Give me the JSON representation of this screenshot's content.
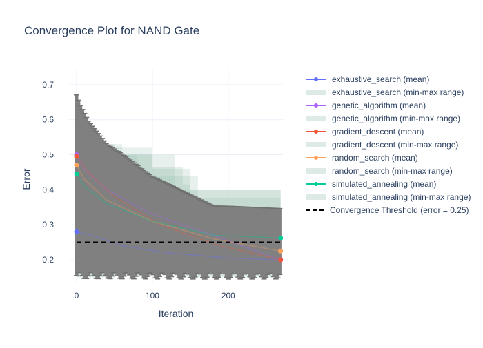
{
  "chart_data": {
    "type": "line",
    "title": "Convergence Plot for NAND Gate",
    "xlabel": "Iteration",
    "ylabel": "Error",
    "xlim": [
      -10,
      272
    ],
    "ylim": [
      0.135,
      0.745
    ],
    "xticks": [
      0,
      100,
      200
    ],
    "yticks": [
      0.2,
      0.3,
      0.4,
      0.5,
      0.6,
      0.7
    ],
    "grid": true,
    "legend_position": "right",
    "threshold": {
      "name": "Convergence Threshold (error = 0.25)",
      "y": 0.25,
      "color": "#000000"
    },
    "series": [
      {
        "name": "exhaustive_search (mean)",
        "range_name": "exhaustive_search (min-max range)",
        "color": "#636efa",
        "points": [
          [
            0,
            0.28
          ],
          [
            20,
            0.27
          ],
          [
            60,
            0.24
          ],
          [
            120,
            0.22
          ],
          [
            200,
            0.205
          ],
          [
            269,
            0.2
          ]
        ],
        "range": [
          [
            0,
            0.16,
            0.36
          ],
          [
            50,
            0.155,
            0.33
          ],
          [
            150,
            0.155,
            0.315
          ],
          [
            269,
            0.155,
            0.315
          ]
        ]
      },
      {
        "name": "genetic_algorithm (mean)",
        "range_name": "genetic_algorithm (min-max range)",
        "color": "#ab63fa",
        "points": [
          [
            0,
            0.5
          ],
          [
            10,
            0.46
          ],
          [
            40,
            0.4
          ],
          [
            100,
            0.33
          ],
          [
            180,
            0.27
          ],
          [
            269,
            0.2
          ]
        ],
        "range": [
          [
            0,
            0.16,
            0.53
          ],
          [
            60,
            0.16,
            0.5
          ],
          [
            130,
            0.165,
            0.4
          ],
          [
            269,
            0.165,
            0.315
          ]
        ]
      },
      {
        "name": "gradient_descent (mean)",
        "range_name": "gradient_descent (min-max range)",
        "color": "#ef553b",
        "points": [
          [
            0,
            0.495
          ],
          [
            15,
            0.45
          ],
          [
            50,
            0.38
          ],
          [
            110,
            0.3
          ],
          [
            190,
            0.24
          ],
          [
            269,
            0.2
          ]
        ],
        "range": [
          [
            0,
            0.15,
            0.53
          ],
          [
            25,
            0.15,
            0.53
          ],
          [
            50,
            0.16,
            0.52
          ],
          [
            100,
            0.165,
            0.46
          ],
          [
            150,
            0.16,
            0.4
          ],
          [
            269,
            0.16,
            0.315
          ]
        ]
      },
      {
        "name": "random_search (mean)",
        "range_name": "random_search (min-max range)",
        "color": "#ffa15a",
        "points": [
          [
            0,
            0.47
          ],
          [
            10,
            0.43
          ],
          [
            40,
            0.37
          ],
          [
            100,
            0.31
          ],
          [
            180,
            0.26
          ],
          [
            269,
            0.225
          ]
        ],
        "range": [
          [
            0,
            0.16,
            0.5
          ],
          [
            80,
            0.16,
            0.44
          ],
          [
            160,
            0.16,
            0.35
          ],
          [
            269,
            0.16,
            0.315
          ]
        ]
      },
      {
        "name": "simulated_annealing (mean)",
        "range_name": "simulated_annealing (min-max range)",
        "color": "#00cc96",
        "points": [
          [
            0,
            0.445
          ],
          [
            10,
            0.41
          ],
          [
            40,
            0.36
          ],
          [
            100,
            0.31
          ],
          [
            180,
            0.27
          ],
          [
            269,
            0.262
          ]
        ],
        "range": [
          [
            0,
            0.15,
            0.53
          ],
          [
            25,
            0.15,
            0.515
          ],
          [
            50,
            0.155,
            0.5
          ],
          [
            100,
            0.16,
            0.465
          ],
          [
            140,
            0.15,
            0.415
          ],
          [
            150,
            0.15,
            0.375
          ],
          [
            269,
            0.15,
            0.375
          ]
        ]
      }
    ]
  }
}
